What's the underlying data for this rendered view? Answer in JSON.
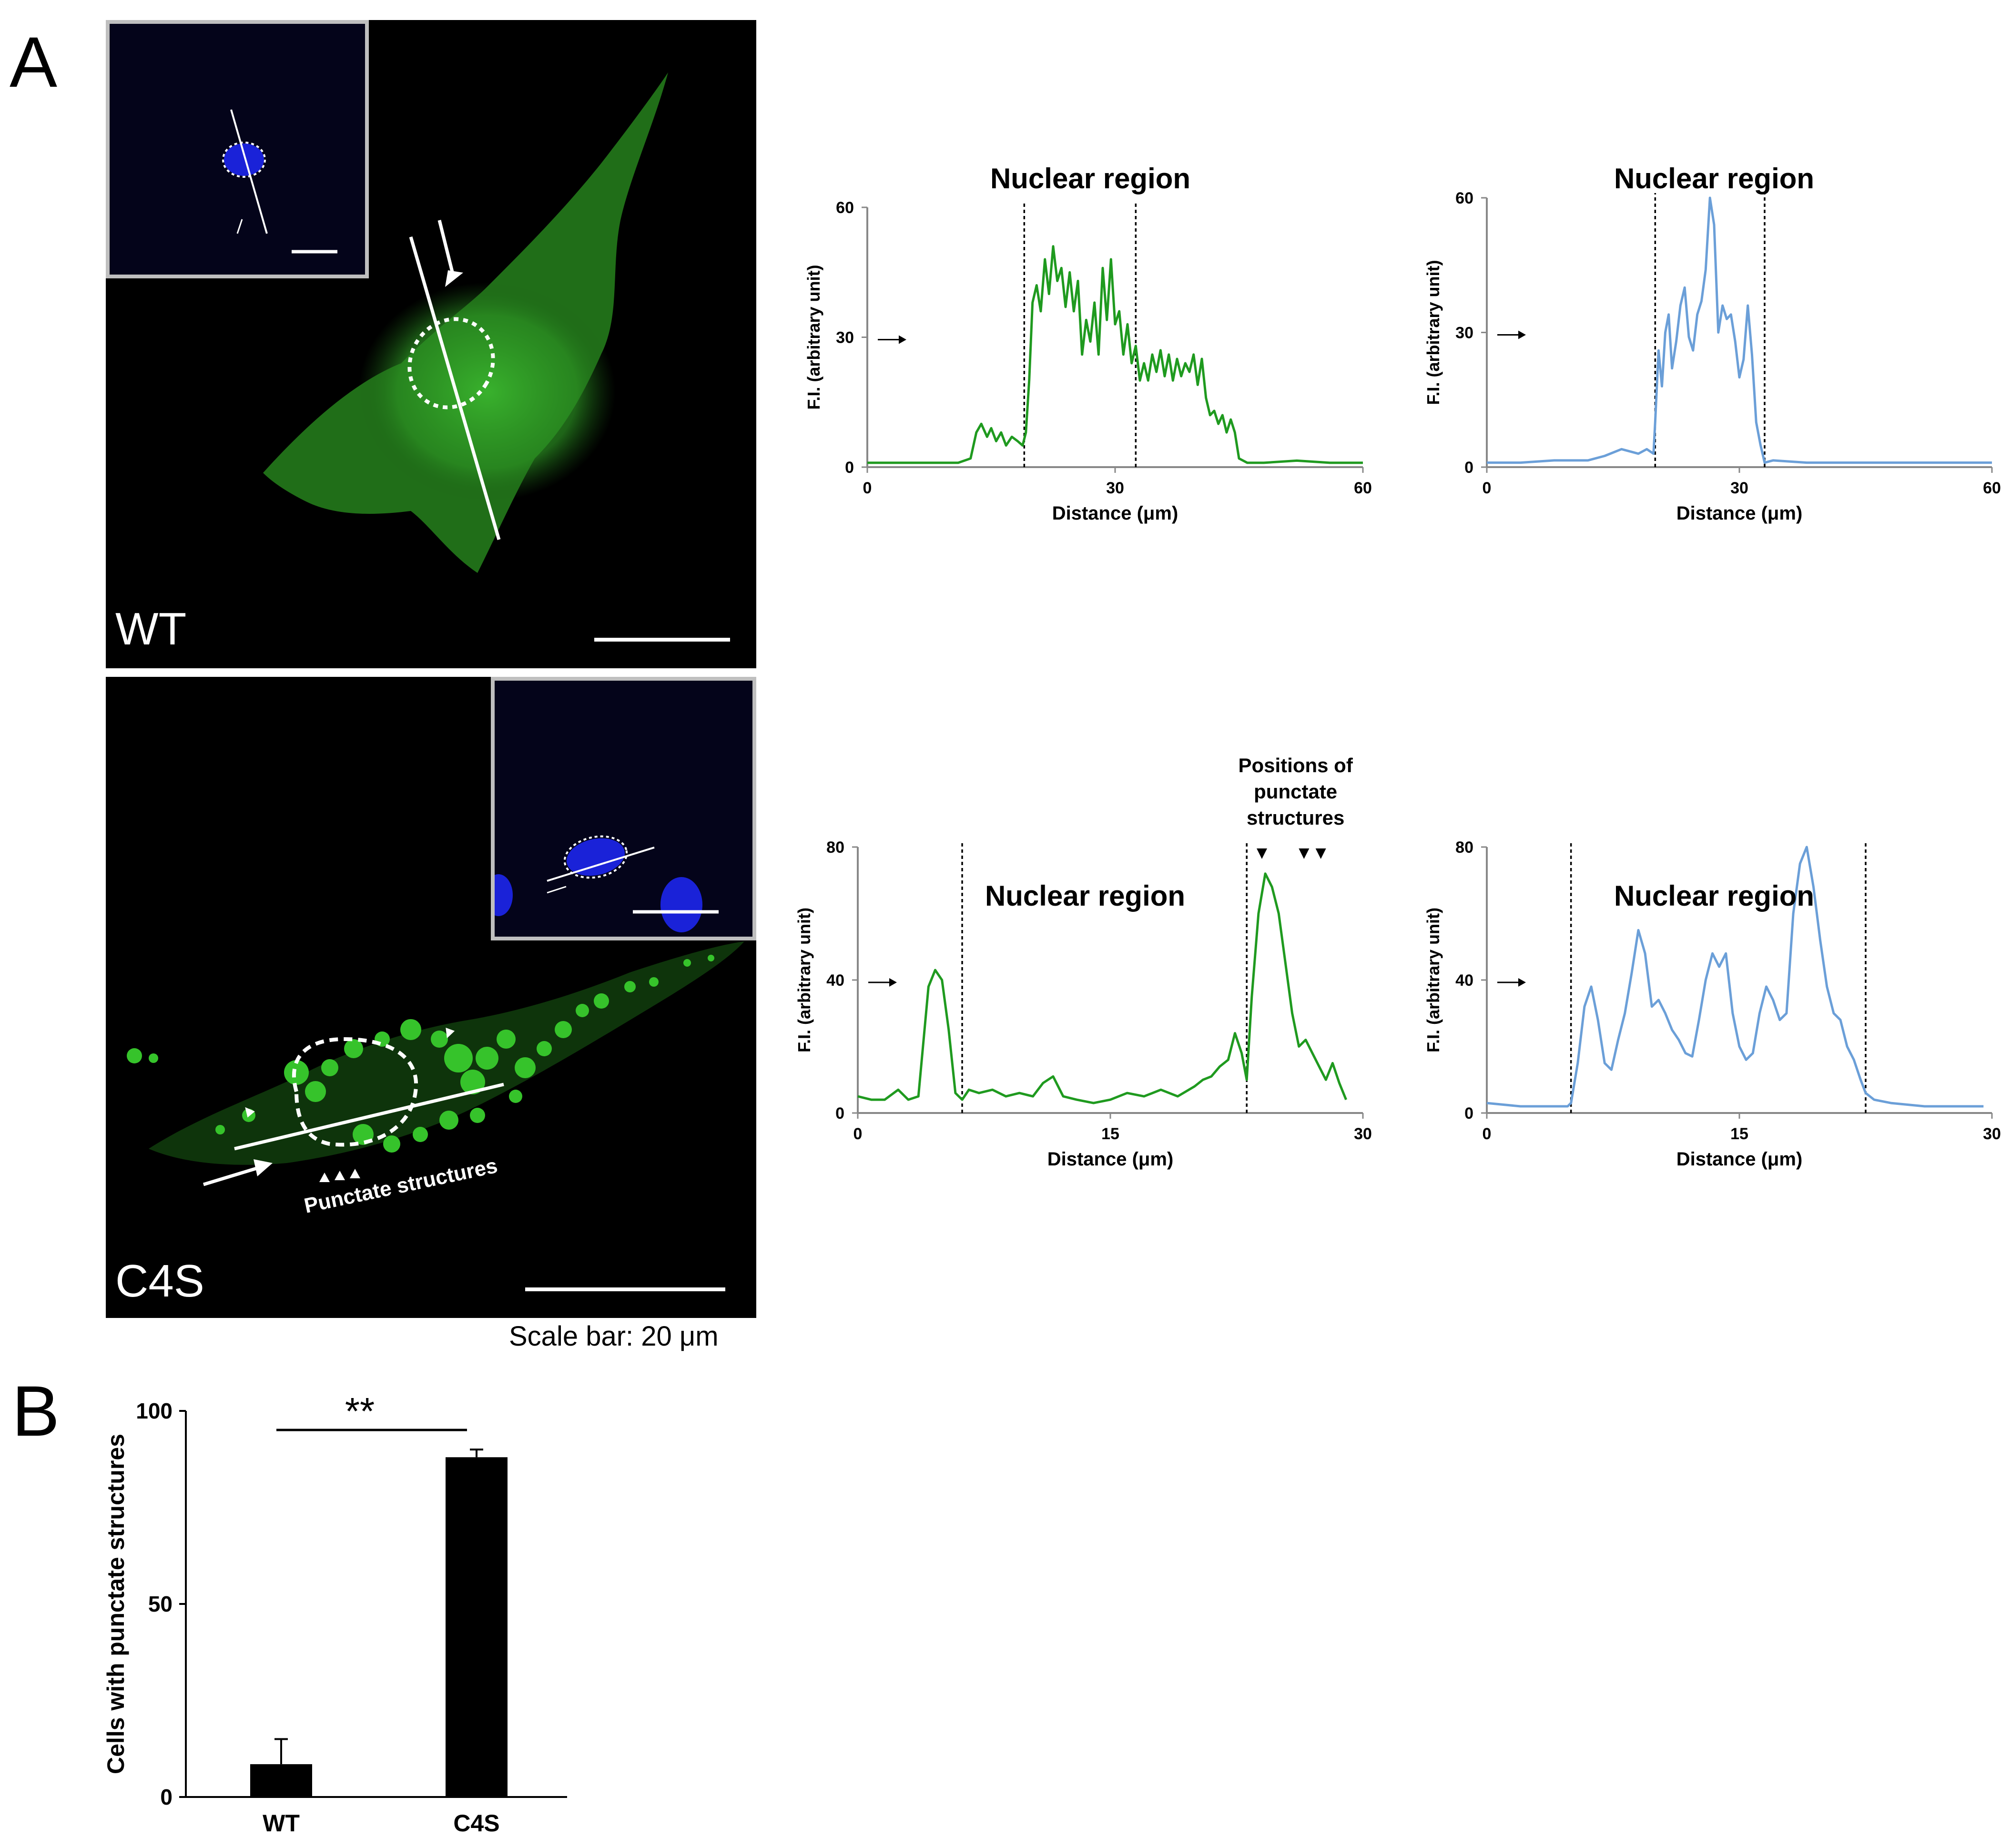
{
  "panels": {
    "A": "A",
    "B": "B"
  },
  "micrographs": [
    {
      "label": "WT",
      "cell_color": "#2e9e24"
    },
    {
      "label": "C4S",
      "cell_color": "#2fbf26",
      "annotation": "Punctate structures"
    }
  ],
  "scale_bar": "Scale bar: 20 μm",
  "colors": {
    "green_trace": "#1f9a1f",
    "blue_trace": "#6b9fd8",
    "nucleus_blue": "#1a22d8",
    "bar_fill": "#000000"
  },
  "chart_data": [
    {
      "type": "line",
      "title": "Nuclear region",
      "xlabel": "Distance (μm)",
      "ylabel": "F.I. (arbitrary unit)",
      "xlim": [
        0,
        60
      ],
      "ylim": [
        0,
        60
      ],
      "xticks": [
        "0",
        "30",
        "60"
      ],
      "yticks": [
        "0",
        "30",
        "60"
      ],
      "dashed_x": [
        19,
        32.5
      ],
      "color": "#1f9a1f",
      "x": [
        0,
        4,
        8,
        11,
        12.5,
        13.2,
        13.8,
        14.5,
        15,
        15.6,
        16.2,
        16.8,
        17.5,
        18.2,
        18.8,
        19.2,
        19.6,
        20,
        20.5,
        21,
        21.5,
        22,
        22.5,
        23,
        23.5,
        24,
        24.5,
        25,
        25.5,
        26,
        26.5,
        27,
        27.5,
        28,
        28.5,
        29,
        29.5,
        30,
        30.5,
        31,
        31.5,
        32,
        32.5,
        33,
        33.5,
        34,
        34.5,
        35,
        35.5,
        36,
        36.5,
        37,
        37.5,
        38,
        38.5,
        39,
        39.5,
        40,
        40.5,
        41,
        41.5,
        42,
        42.5,
        43,
        43.5,
        44,
        44.5,
        45,
        46,
        48,
        52,
        56,
        60
      ],
      "y": [
        1,
        1,
        1,
        1,
        2,
        8,
        10,
        7,
        9,
        6,
        8,
        5,
        7,
        6,
        5,
        8,
        20,
        38,
        42,
        36,
        48,
        40,
        51,
        43,
        46,
        37,
        45,
        36,
        43,
        26,
        34,
        29,
        38,
        26,
        46,
        34,
        48,
        33,
        36,
        26,
        33,
        24,
        28,
        20,
        24,
        20,
        26,
        22,
        27,
        21,
        26,
        20,
        25,
        21,
        24,
        22,
        26,
        19,
        25,
        16,
        12,
        13,
        10,
        12,
        8,
        11,
        8,
        2,
        1,
        1,
        1.5,
        1,
        1
      ]
    },
    {
      "type": "line",
      "title": "Nuclear region",
      "xlabel": "Distance (μm)",
      "ylabel": "F.I. (arbitrary unit)",
      "xlim": [
        0,
        60
      ],
      "ylim": [
        0,
        60
      ],
      "xticks": [
        "0",
        "30",
        "60"
      ],
      "yticks": [
        "0",
        "30",
        "60"
      ],
      "dashed_x": [
        20,
        33
      ],
      "color": "#6b9fd8",
      "x": [
        0,
        4,
        8,
        12,
        14,
        16,
        18,
        19,
        19.8,
        20,
        20.4,
        20.8,
        21.2,
        21.6,
        22,
        22.5,
        23,
        23.5,
        24,
        24.5,
        25,
        25.5,
        26,
        26.5,
        27,
        27.5,
        28,
        28.5,
        29,
        29.5,
        30,
        30.5,
        31,
        31.5,
        32,
        32.5,
        33,
        34,
        38,
        42,
        46,
        50,
        55,
        60
      ],
      "y": [
        1,
        1,
        1.5,
        1.5,
        2.5,
        4,
        3,
        4,
        3,
        10,
        26,
        18,
        30,
        34,
        22,
        28,
        36,
        40,
        29,
        26,
        34,
        37,
        44,
        60,
        54,
        30,
        36,
        33,
        34,
        28,
        20,
        24,
        36,
        25,
        10,
        5,
        1,
        1.5,
        1,
        1,
        1,
        1,
        1,
        1
      ]
    },
    {
      "type": "line",
      "title": "Nuclear region",
      "xlabel": "Distance (μm)",
      "ylabel": "F.I. (arbitrary unit)",
      "annotation": "Positions of punctate structures",
      "marker_x": [
        24,
        26.5,
        27.5
      ],
      "xlim": [
        0,
        30
      ],
      "ylim": [
        0,
        80
      ],
      "xticks": [
        "0",
        "15",
        "30"
      ],
      "yticks": [
        "0",
        "40",
        "80"
      ],
      "dashed_x": [
        6.2,
        23.1
      ],
      "color": "#1f9a1f",
      "x": [
        0,
        0.8,
        1.6,
        2.4,
        3,
        3.6,
        4.2,
        4.6,
        5,
        5.4,
        5.8,
        6.2,
        6.6,
        7.2,
        8,
        8.8,
        9.6,
        10.4,
        11,
        11.6,
        12.2,
        13,
        14,
        15,
        16,
        17,
        18,
        19,
        20,
        20.5,
        21,
        21.5,
        22,
        22.4,
        22.8,
        23.1,
        23.4,
        23.8,
        24.2,
        24.6,
        25,
        25.4,
        25.8,
        26.2,
        26.6,
        27,
        27.4,
        27.8,
        28.2,
        28.6,
        29
      ],
      "y": [
        5,
        4,
        4,
        7,
        4,
        5,
        38,
        43,
        40,
        25,
        6,
        4,
        7,
        6,
        7,
        5,
        6,
        5,
        9,
        11,
        5,
        4,
        3,
        4,
        6,
        5,
        7,
        5,
        8,
        10,
        11,
        14,
        16,
        24,
        18,
        10,
        35,
        60,
        72,
        68,
        60,
        45,
        30,
        20,
        22,
        18,
        14,
        10,
        15,
        9,
        4
      ]
    },
    {
      "type": "line",
      "title": "Nuclear region",
      "xlabel": "Distance (μm)",
      "ylabel": "F.I. (arbitrary unit)",
      "xlim": [
        0,
        30
      ],
      "ylim": [
        0,
        80
      ],
      "xticks": [
        "0",
        "15",
        "30"
      ],
      "yticks": [
        "0",
        "40",
        "80"
      ],
      "dashed_x": [
        5,
        22.5
      ],
      "color": "#6b9fd8",
      "x": [
        0,
        2,
        4,
        4.8,
        5,
        5.4,
        5.8,
        6.2,
        6.6,
        7,
        7.4,
        7.8,
        8.2,
        8.6,
        9,
        9.4,
        9.8,
        10.2,
        10.6,
        11,
        11.4,
        11.8,
        12.2,
        12.6,
        13,
        13.4,
        13.8,
        14.2,
        14.6,
        15,
        15.4,
        15.8,
        16.2,
        16.6,
        17,
        17.4,
        17.8,
        18.2,
        18.6,
        19,
        19.4,
        19.8,
        20.2,
        20.6,
        21,
        21.4,
        21.8,
        22.2,
        22.5,
        23,
        24,
        26,
        28,
        29.5
      ],
      "y": [
        3,
        2,
        2,
        2,
        3,
        15,
        32,
        38,
        28,
        15,
        13,
        22,
        30,
        42,
        55,
        48,
        32,
        34,
        30,
        25,
        22,
        18,
        17,
        28,
        40,
        48,
        44,
        48,
        30,
        20,
        16,
        18,
        30,
        38,
        34,
        28,
        30,
        60,
        75,
        80,
        68,
        52,
        38,
        30,
        28,
        20,
        16,
        10,
        6,
        4,
        3,
        2,
        2,
        2
      ]
    },
    {
      "type": "bar",
      "categories": [
        "WT",
        "C4S"
      ],
      "values": [
        8.5,
        88
      ],
      "errors": [
        6.5,
        2
      ],
      "ylabel": "Cells with punctate structures",
      "ylim": [
        0,
        100
      ],
      "yticks": [
        "0",
        "50",
        "100"
      ],
      "significance": "**"
    }
  ]
}
